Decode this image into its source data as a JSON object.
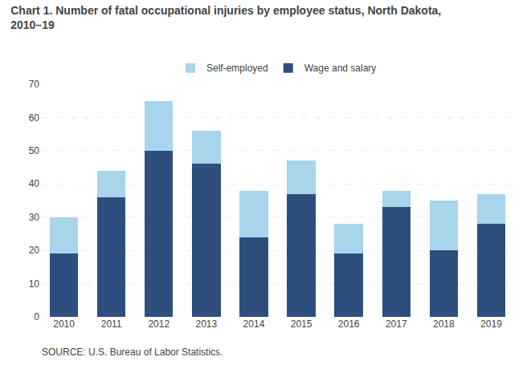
{
  "chart_data": {
    "type": "bar",
    "title": [
      "Chart 1. Number of fatal occupational injuries by employee status, North Dakota,",
      "2010–19"
    ],
    "categories": [
      "2010",
      "2011",
      "2012",
      "2013",
      "2014",
      "2015",
      "2016",
      "2017",
      "2018",
      "2019"
    ],
    "series": [
      {
        "name": "Wage and salary",
        "color": "#2E4E7E",
        "values": [
          19,
          36,
          50,
          46,
          24,
          37,
          19,
          33,
          20,
          28
        ]
      },
      {
        "name": "Self-employed",
        "color": "#A8D4EC",
        "values": [
          11,
          8,
          15,
          10,
          14,
          10,
          9,
          5,
          15,
          9
        ]
      }
    ],
    "stacked": true,
    "ylim": [
      0,
      70
    ],
    "yticks": [
      0,
      10,
      20,
      30,
      40,
      50,
      60,
      70
    ],
    "grid": true,
    "legend": "top",
    "annotations": [
      "SOURCE: U.S. Bureau of Labor Statistics."
    ]
  }
}
